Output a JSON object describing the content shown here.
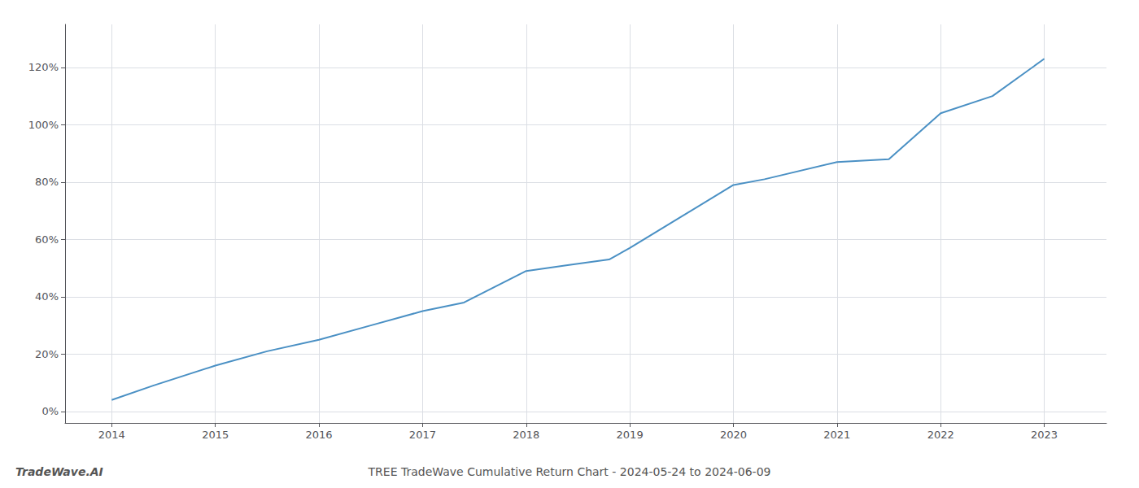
{
  "chart_data": {
    "type": "line",
    "title": "TREE TradeWave Cumulative Return Chart - 2024-05-24 to 2024-06-09",
    "annotation": "TradeWave.AI",
    "x": [
      2014.0,
      2014.4,
      2015.0,
      2015.5,
      2016.0,
      2016.5,
      2017.0,
      2017.4,
      2018.0,
      2018.4,
      2018.8,
      2019.0,
      2019.5,
      2020.0,
      2020.3,
      2021.0,
      2021.5,
      2022.0,
      2022.5,
      2023.0
    ],
    "values": [
      0.04,
      0.09,
      0.16,
      0.21,
      0.25,
      0.3,
      0.35,
      0.38,
      0.49,
      0.51,
      0.53,
      0.57,
      0.68,
      0.79,
      0.81,
      0.87,
      0.88,
      1.04,
      1.1,
      1.23
    ],
    "color": "#4a90c4",
    "xlim": [
      2013.55,
      2023.6
    ],
    "xticks": [
      2014,
      2015,
      2016,
      2017,
      2018,
      2019,
      2020,
      2021,
      2022,
      2023
    ],
    "ylim": [
      -0.04,
      1.35
    ],
    "yticks": [
      {
        "value": 0.0,
        "label": "0%"
      },
      {
        "value": 0.2,
        "label": "20%"
      },
      {
        "value": 0.4,
        "label": "40%"
      },
      {
        "value": 0.6,
        "label": "60%"
      },
      {
        "value": 0.8,
        "label": "80%"
      },
      {
        "value": 1.0,
        "label": "100%"
      },
      {
        "value": 1.2,
        "label": "120%"
      }
    ],
    "grid": true
  }
}
